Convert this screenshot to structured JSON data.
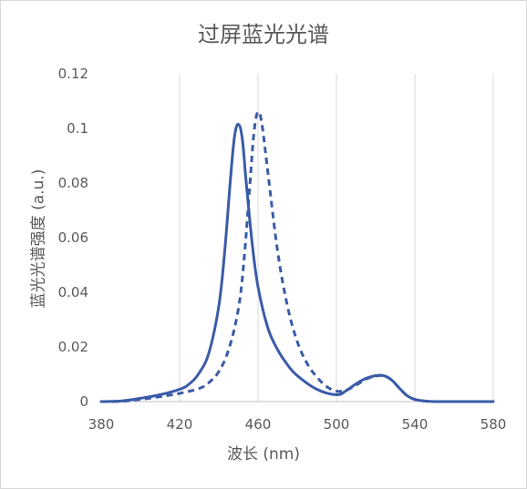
{
  "chart_data": {
    "type": "line",
    "title": "过屏蓝光光谱",
    "xlabel": "波长 (nm)",
    "ylabel": "蓝光光谱强度 (a.u.)",
    "xlim": [
      380,
      580
    ],
    "ylim": [
      0,
      0.12
    ],
    "x_ticks": [
      380,
      420,
      460,
      500,
      540,
      580
    ],
    "y_ticks": [
      0,
      0.02,
      0.04,
      0.06,
      0.08,
      0.1,
      0.12
    ],
    "x_tick_labels": [
      "380",
      "420",
      "460",
      "500",
      "540",
      "580"
    ],
    "y_tick_labels": [
      "0",
      "0.02",
      "0.04",
      "0.06",
      "0.08",
      "0.1",
      "0.12"
    ],
    "grid": "vertical",
    "legend": "none",
    "series": [
      {
        "style": "solid",
        "color": "#3A5BA8",
        "x": [
          380,
          390,
          400,
          410,
          420,
          425,
          430,
          435,
          440,
          443,
          446,
          448,
          450,
          452,
          454,
          457,
          460,
          465,
          470,
          475,
          480,
          490,
          500,
          505,
          510,
          515,
          520,
          524,
          528,
          532,
          536,
          540,
          545,
          550,
          560,
          570,
          580
        ],
        "y": [
          0.0,
          0.0002,
          0.0012,
          0.0025,
          0.0045,
          0.0065,
          0.0105,
          0.018,
          0.035,
          0.055,
          0.082,
          0.097,
          0.1015,
          0.096,
          0.08,
          0.058,
          0.042,
          0.027,
          0.019,
          0.0135,
          0.0095,
          0.0045,
          0.0025,
          0.004,
          0.0065,
          0.0085,
          0.0095,
          0.0095,
          0.008,
          0.005,
          0.0022,
          0.0008,
          0.0002,
          0.0,
          0.0,
          0.0,
          0.0
        ]
      },
      {
        "style": "dashed",
        "color": "#3A5BA8",
        "x": [
          380,
          390,
          400,
          410,
          420,
          430,
          435,
          440,
          445,
          450,
          453,
          456,
          458,
          460,
          462,
          465,
          470,
          475,
          480,
          485,
          490,
          495,
          500,
          505,
          510,
          515,
          520,
          524,
          528,
          532,
          536,
          540,
          545,
          550,
          560,
          570,
          580
        ],
        "y": [
          0.0,
          0.0001,
          0.0008,
          0.0018,
          0.003,
          0.0048,
          0.007,
          0.011,
          0.019,
          0.034,
          0.053,
          0.081,
          0.099,
          0.106,
          0.1015,
          0.084,
          0.055,
          0.035,
          0.022,
          0.014,
          0.009,
          0.0055,
          0.0038,
          0.0042,
          0.006,
          0.0082,
          0.0093,
          0.0095,
          0.008,
          0.005,
          0.0022,
          0.0008,
          0.0002,
          0.0,
          0.0,
          0.0,
          0.0
        ]
      }
    ]
  }
}
